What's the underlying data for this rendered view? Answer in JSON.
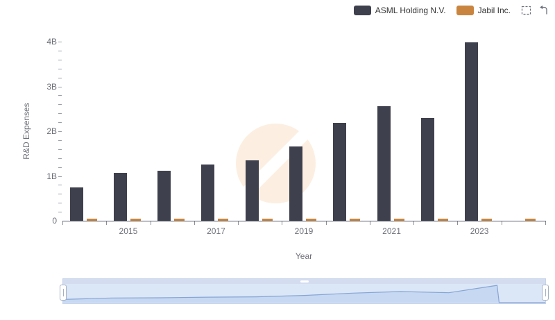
{
  "legend": {
    "items": [
      {
        "label": "ASML Holding N.V.",
        "color": "#3e404d"
      },
      {
        "label": "Jabil Inc.",
        "color": "#c9853f"
      }
    ]
  },
  "toolbox": {
    "zoom_icon": "data-zoom-select",
    "restore_icon": "restore"
  },
  "chart": {
    "ylabel": "R&D Expenses",
    "xlabel": "Year",
    "ytick_labels": [
      "0",
      "1B",
      "2B",
      "3B",
      "4B"
    ],
    "xtick_labels": [
      "2015",
      "2017",
      "2019",
      "2021",
      "2023"
    ],
    "xtick_label_indices": [
      1,
      3,
      5,
      7,
      9
    ]
  },
  "chart_data": {
    "type": "bar",
    "title": "",
    "xlabel": "Year",
    "ylabel": "R&D Expenses",
    "ylim": [
      0,
      4
    ],
    "y_unit": "B",
    "grid": false,
    "legend_position": "top-right",
    "categories": [
      "2014",
      "2015",
      "2016",
      "2017",
      "2018",
      "2019",
      "2020",
      "2021",
      "2022",
      "2023",
      "2024"
    ],
    "series": [
      {
        "name": "ASML Holding N.V.",
        "color": "#3e404d",
        "values": [
          0.74,
          1.07,
          1.12,
          1.26,
          1.35,
          1.66,
          2.19,
          2.56,
          2.29,
          3.98,
          null
        ]
      },
      {
        "name": "Jabil Inc.",
        "color": "#c9853f",
        "values": [
          0.02,
          0.02,
          0.02,
          0.02,
          0.03,
          0.03,
          0.04,
          0.03,
          0.03,
          0.03,
          0.03
        ]
      }
    ],
    "navigator": {
      "present": true,
      "range_selected": [
        0,
        100
      ],
      "shadow_series": "ASML Holding N.V."
    }
  },
  "colors": {
    "axis_line": "#595e6a",
    "tick_text": "#6E7079",
    "legend_text": "#333333",
    "watermark": "#fcefe1",
    "nav_border": "#c6d3ec",
    "nav_track": "#dbe6f7",
    "nav_area_fill": "#c6d8f2",
    "nav_area_line": "#86a5d4"
  }
}
